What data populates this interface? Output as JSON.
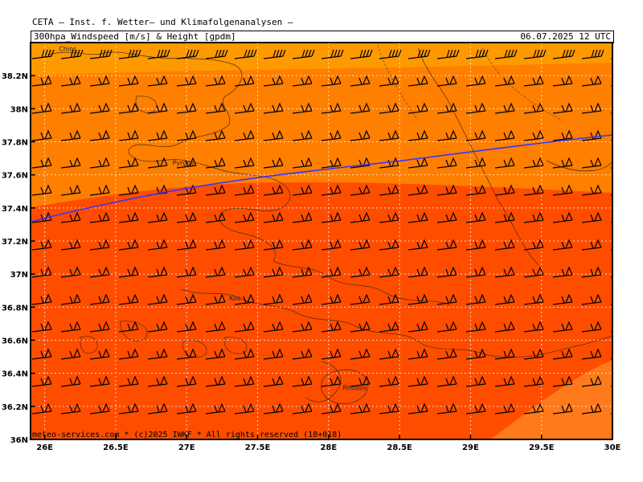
{
  "header": {
    "organization": "CETA – Inst. f. Wetter– und Klimafolgenanalysen –",
    "product": "300hpa_Windspeed [m/s] & Height [gpdm]",
    "datetime": "06.07.2025 12 UTC"
  },
  "footer": {
    "copyright": "meteo-services.com * (c)2025 IWKF * All rights reserved (18+018)"
  },
  "axes": {
    "lat_labels": [
      "38.2N",
      "38N",
      "37.8N",
      "37.6N",
      "37.4N",
      "37.2N",
      "37N",
      "36.8N",
      "36.6N",
      "36.4N",
      "36.2N",
      "36N"
    ],
    "lon_labels": [
      "26E",
      "26.5E",
      "27E",
      "27.5E",
      "28E",
      "28.5E",
      "29E",
      "29.5E",
      "30E"
    ]
  },
  "places": [
    {
      "name": "Chios",
      "lon": 26.1,
      "lat": 38.35
    },
    {
      "name": "Pyrgos",
      "lon": 26.9,
      "lat": 37.66
    },
    {
      "name": "Kos",
      "lon": 27.3,
      "lat": 36.84
    },
    {
      "name": "Rhodos",
      "lon": 28.1,
      "lat": 36.3
    }
  ],
  "colors": {
    "band_top": "#ff9900",
    "band_upper": "#ff7f00",
    "band_main": "#ff4d00",
    "band_corner": "#ff7a1a",
    "height_contour": "#3333ff",
    "barb": "#000000"
  }
}
